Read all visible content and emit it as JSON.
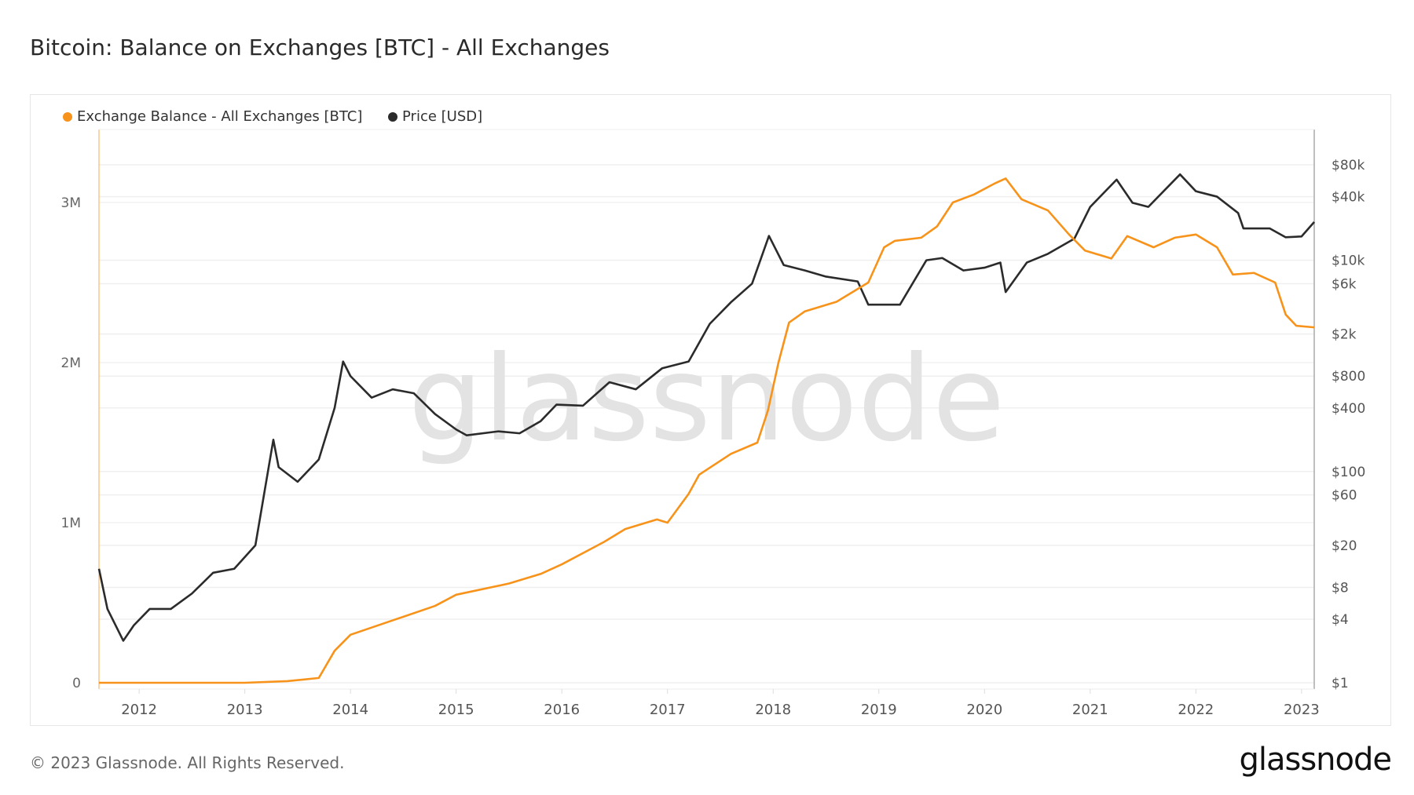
{
  "title": "Bitcoin: Balance on Exchanges [BTC] - All Exchanges",
  "footer": "© 2023 Glassnode. All Rights Reserved.",
  "logo": "glassnode",
  "watermark": "glassnode",
  "colors": {
    "balance": "#f7931a",
    "price": "#2b2b2b"
  },
  "chart_data": {
    "type": "line",
    "title": "Bitcoin: Balance on Exchanges [BTC] - All Exchanges",
    "legend_position": "top-left",
    "grid": true,
    "x_ticks": [
      "2012",
      "2013",
      "2014",
      "2015",
      "2016",
      "2017",
      "2018",
      "2019",
      "2020",
      "2021",
      "2022",
      "2023"
    ],
    "xlim": [
      2011.62,
      2023.12
    ],
    "y_left": {
      "ticks": [
        "0",
        "1M",
        "2M",
        "3M"
      ],
      "tick_values": [
        0,
        1000000,
        2000000,
        3000000
      ],
      "range": [
        0,
        3450000
      ]
    },
    "y_right": {
      "scale": "log",
      "ticks": [
        "$1",
        "$4",
        "$8",
        "$20",
        "$60",
        "$100",
        "$400",
        "$800",
        "$2k",
        "$6k",
        "$10k",
        "$40k",
        "$80k"
      ],
      "tick_values": [
        1,
        4,
        8,
        20,
        60,
        100,
        400,
        800,
        2000,
        6000,
        10000,
        40000,
        80000
      ],
      "range": [
        1,
        160000
      ]
    },
    "series": [
      {
        "name": "Exchange Balance - All Exchanges [BTC]",
        "axis": "left",
        "x": [
          2011.62,
          2013.0,
          2013.4,
          2013.7,
          2013.85,
          2014.0,
          2014.4,
          2014.8,
          2015.0,
          2015.5,
          2015.8,
          2016.0,
          2016.4,
          2016.6,
          2016.9,
          2017.0,
          2017.2,
          2017.3,
          2017.6,
          2017.85,
          2017.95,
          2018.05,
          2018.15,
          2018.3,
          2018.6,
          2018.9,
          2019.05,
          2019.15,
          2019.4,
          2019.55,
          2019.7,
          2019.9,
          2020.1,
          2020.2,
          2020.35,
          2020.6,
          2020.8,
          2020.95,
          2021.2,
          2021.35,
          2021.6,
          2021.8,
          2022.0,
          2022.2,
          2022.35,
          2022.55,
          2022.75,
          2022.85,
          2022.95,
          2023.12
        ],
        "values": [
          0,
          0,
          10000,
          30000,
          200000,
          300000,
          390000,
          480000,
          550000,
          620000,
          680000,
          740000,
          880000,
          960000,
          1020000,
          1000000,
          1180000,
          1300000,
          1430000,
          1500000,
          1700000,
          2000000,
          2250000,
          2320000,
          2380000,
          2500000,
          2720000,
          2760000,
          2780000,
          2850000,
          3000000,
          3050000,
          3120000,
          3150000,
          3020000,
          2950000,
          2800000,
          2700000,
          2650000,
          2790000,
          2720000,
          2780000,
          2800000,
          2720000,
          2550000,
          2560000,
          2500000,
          2300000,
          2230000,
          2220000
        ]
      },
      {
        "name": "Price [USD]",
        "axis": "right",
        "x": [
          2011.62,
          2011.7,
          2011.85,
          2011.95,
          2012.1,
          2012.3,
          2012.5,
          2012.7,
          2012.9,
          2013.1,
          2013.27,
          2013.32,
          2013.5,
          2013.7,
          2013.85,
          2013.93,
          2014.0,
          2014.2,
          2014.4,
          2014.6,
          2014.8,
          2015.0,
          2015.1,
          2015.4,
          2015.6,
          2015.8,
          2015.95,
          2016.2,
          2016.45,
          2016.7,
          2016.95,
          2017.2,
          2017.4,
          2017.6,
          2017.8,
          2017.96,
          2018.1,
          2018.3,
          2018.5,
          2018.8,
          2018.9,
          2019.2,
          2019.45,
          2019.6,
          2019.8,
          2020.0,
          2020.15,
          2020.2,
          2020.4,
          2020.6,
          2020.85,
          2021.0,
          2021.25,
          2021.4,
          2021.55,
          2021.85,
          2022.0,
          2022.2,
          2022.4,
          2022.45,
          2022.7,
          2022.85,
          2023.0,
          2023.12
        ],
        "values": [
          12,
          5,
          2.5,
          3.5,
          5,
          5,
          7,
          11,
          12,
          20,
          200,
          110,
          80,
          130,
          400,
          1100,
          800,
          500,
          600,
          550,
          350,
          250,
          220,
          240,
          230,
          300,
          430,
          420,
          700,
          600,
          950,
          1100,
          2500,
          4000,
          6000,
          17000,
          9000,
          8000,
          7000,
          6300,
          3800,
          3800,
          10000,
          10500,
          8000,
          8500,
          9500,
          5000,
          9500,
          11500,
          16000,
          32000,
          58000,
          35000,
          32000,
          65000,
          45000,
          40000,
          28000,
          20000,
          20000,
          16500,
          16800,
          23000
        ]
      }
    ]
  }
}
